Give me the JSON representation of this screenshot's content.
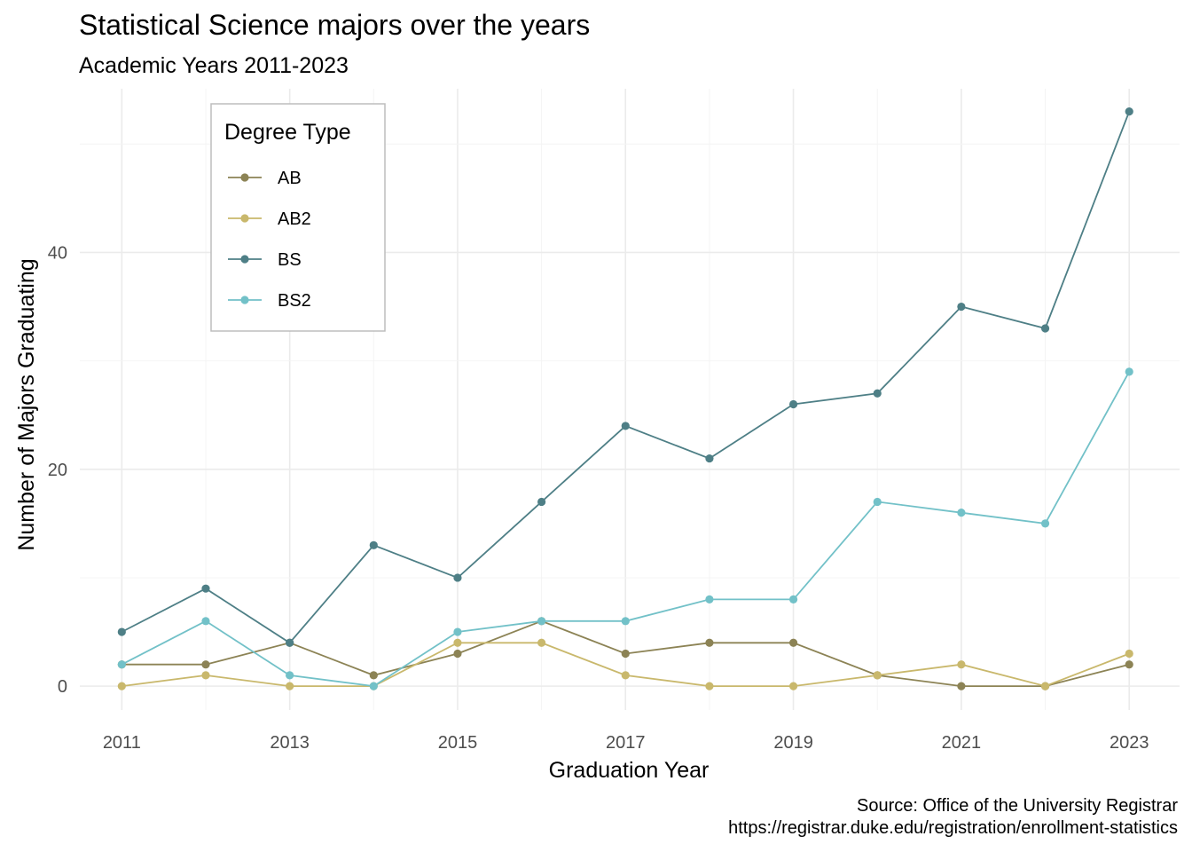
{
  "chart_data": {
    "type": "line",
    "title": "Statistical Science majors over the years",
    "subtitle": "Academic Years 2011-2023",
    "xlabel": "Graduation Year",
    "ylabel": "Number of Majors Graduating",
    "caption_line1": "Source: Office of the University Registrar",
    "caption_line2": "https://registrar.duke.edu/registration/enrollment-statistics",
    "x": [
      2011,
      2012,
      2013,
      2014,
      2015,
      2016,
      2017,
      2018,
      2019,
      2020,
      2021,
      2022,
      2023
    ],
    "x_ticks": [
      2011,
      2013,
      2015,
      2017,
      2019,
      2021,
      2023
    ],
    "y_ticks": [
      0,
      20,
      40
    ],
    "xlim": [
      2010.5,
      2023.6
    ],
    "ylim": [
      -2.2,
      55.1
    ],
    "grid": true,
    "legend": {
      "title": "Degree Type",
      "position": "top-left"
    },
    "series": [
      {
        "name": "AB",
        "color": "#8c8355",
        "values": [
          2,
          2,
          4,
          1,
          3,
          6,
          3,
          4,
          4,
          1,
          0,
          0,
          2
        ]
      },
      {
        "name": "AB2",
        "color": "#c9b86c",
        "values": [
          0,
          1,
          0,
          0,
          4,
          4,
          1,
          0,
          0,
          1,
          2,
          0,
          3
        ]
      },
      {
        "name": "BS",
        "color": "#4e7f86",
        "values": [
          5,
          9,
          4,
          13,
          10,
          17,
          24,
          21,
          26,
          27,
          35,
          33,
          53
        ]
      },
      {
        "name": "BS2",
        "color": "#72c1c8",
        "values": [
          2,
          6,
          1,
          0,
          5,
          6,
          6,
          8,
          8,
          17,
          16,
          15,
          29
        ]
      }
    ]
  }
}
